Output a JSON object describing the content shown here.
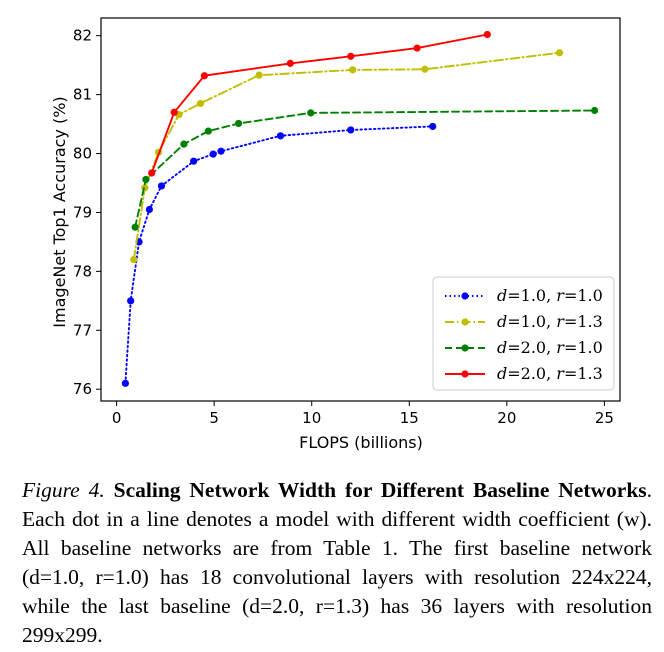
{
  "chart_data": {
    "type": "line",
    "xlabel": "FLOPS (billions)",
    "ylabel": "ImageNet Top1 Accuracy (%)",
    "xlim": [
      -0.8,
      25.8
    ],
    "ylim": [
      75.8,
      82.3
    ],
    "xticks": [
      0,
      5,
      10,
      15,
      20,
      25
    ],
    "yticks": [
      76,
      77,
      78,
      79,
      80,
      81,
      82
    ],
    "grid": false,
    "legend_position": "bottom-right",
    "series": [
      {
        "name_parts": [
          [
            "d",
            "=1.0, "
          ],
          [
            "r",
            "=1.0"
          ]
        ],
        "color": "#0000ff",
        "line_style": "dotted",
        "x": [
          0.45,
          0.72,
          1.15,
          1.68,
          2.3,
          3.95,
          4.95,
          5.35,
          8.4,
          12.0,
          16.2
        ],
        "y": [
          76.1,
          77.5,
          78.5,
          79.05,
          79.45,
          79.87,
          79.99,
          80.04,
          80.3,
          80.4,
          80.46
        ]
      },
      {
        "name_parts": [
          [
            "d",
            "=1.0, "
          ],
          [
            "r",
            "=1.3"
          ]
        ],
        "color": "#bfbf00",
        "line_style": "dashdot",
        "x": [
          0.88,
          1.45,
          2.15,
          3.2,
          4.3,
          7.3,
          12.1,
          15.8,
          22.7
        ],
        "y": [
          78.2,
          79.42,
          80.02,
          80.66,
          80.85,
          81.33,
          81.42,
          81.43,
          81.71
        ]
      },
      {
        "name_parts": [
          [
            "d",
            "=2.0, "
          ],
          [
            "r",
            "=1.0"
          ]
        ],
        "color": "#008000",
        "line_style": "dashed",
        "x": [
          0.95,
          1.5,
          3.45,
          4.7,
          6.25,
          9.95,
          24.5
        ],
        "y": [
          78.75,
          79.56,
          80.16,
          80.38,
          80.51,
          80.69,
          80.73
        ]
      },
      {
        "name_parts": [
          [
            "d",
            "=2.0, "
          ],
          [
            "r",
            "=1.3"
          ]
        ],
        "color": "#ff0000",
        "line_style": "solid",
        "x": [
          1.8,
          2.95,
          4.5,
          8.9,
          12.0,
          15.4,
          19.0
        ],
        "y": [
          79.67,
          80.7,
          81.32,
          81.53,
          81.65,
          81.79,
          82.02
        ]
      }
    ]
  },
  "caption": {
    "figure_label": "Figure 4.",
    "bold_title": "Scaling Network Width for Different Baseline Networks",
    "body": ". Each dot in a line denotes a model with different width coefficient (w). All baseline networks are from Table 1. The first baseline network (d=1.0, r=1.0) has 18 convolutional layers with resolution 224x224, while the last baseline (d=2.0, r=1.3) has 36 layers with resolution 299x299."
  }
}
